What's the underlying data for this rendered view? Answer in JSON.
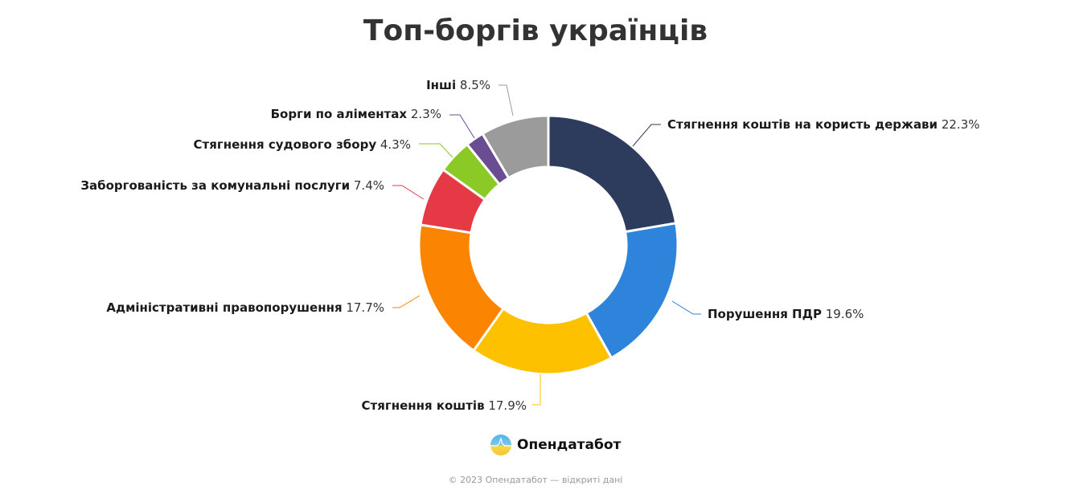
{
  "chart_data": {
    "type": "pie",
    "donut": true,
    "title": "Топ-боргів українців",
    "categories": [
      "Стягнення коштів на користь держави",
      "Порушення ПДР",
      "Стягнення коштів",
      "Адміністративні правопорушення",
      "Заборгованість за комунальні послуги",
      "Стягнення судового збору",
      "Борги по аліментах",
      "Інші"
    ],
    "values": [
      22.3,
      19.6,
      17.9,
      17.7,
      7.4,
      4.3,
      2.3,
      8.5
    ],
    "value_labels": [
      "22.3%",
      "19.6%",
      "17.9%",
      "17.7%",
      "7.4%",
      "4.3%",
      "2.3%",
      "8.5%"
    ],
    "colors": [
      "#2d3c5c",
      "#2e83db",
      "#fdc100",
      "#fb8500",
      "#e63946",
      "#8ac926",
      "#6a4c93",
      "#9b9b9b"
    ],
    "start": "top, clockwise",
    "legend": "labels outside with leader lines"
  },
  "brand": {
    "name": "Опендатабот",
    "icon": "opendatabot-logo-icon"
  },
  "footer": "© 2023 Опендатабот — відкриті дані"
}
